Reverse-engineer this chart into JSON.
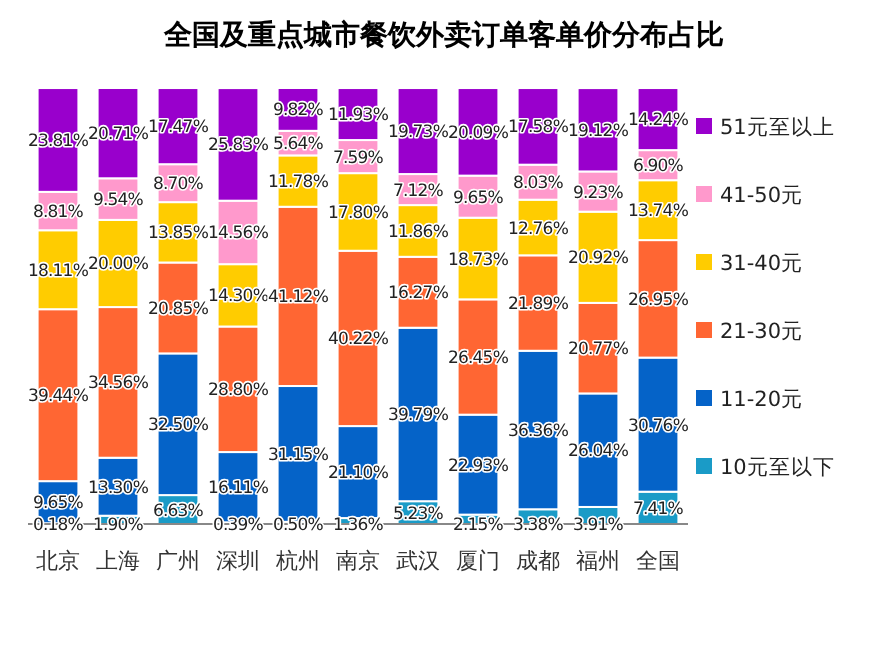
{
  "chart_data": {
    "type": "bar",
    "stacked": true,
    "legend": "right",
    "title": "全国及重点城市餐饮外卖订单客单价分布占比",
    "categories": [
      "北京",
      "上海",
      "广州",
      "深圳",
      "杭州",
      "南京",
      "武汉",
      "厦门",
      "成都",
      "福州",
      "全国"
    ],
    "series": [
      {
        "name": "10元至以下",
        "color": "#1a9bc7",
        "values": [
          0.18,
          1.9,
          6.63,
          0.39,
          0.5,
          1.36,
          5.23,
          2.15,
          3.38,
          3.91,
          7.41
        ],
        "value_labels": [
          "0.18%",
          "1.90%",
          "6.63%",
          "0.39%",
          "0.50%",
          "1.36%",
          "5.23%",
          "2.15%",
          "3.38%",
          "3.91%",
          "7.41%"
        ]
      },
      {
        "name": "11-20元",
        "color": "#0563c8",
        "values": [
          9.65,
          13.3,
          32.5,
          16.11,
          31.15,
          21.1,
          39.79,
          22.93,
          36.36,
          26.04,
          30.76
        ],
        "value_labels": [
          "9.65%",
          "13.30%",
          "32.50%",
          "16.11%",
          "31.15%",
          "21.10%",
          "39.79%",
          "22.93%",
          "36.36%",
          "26.04%",
          "30.76%"
        ]
      },
      {
        "name": "21-30元",
        "color": "#ff6633",
        "values": [
          39.44,
          34.56,
          20.85,
          28.8,
          41.12,
          40.22,
          16.27,
          26.45,
          21.89,
          20.77,
          26.95
        ],
        "value_labels": [
          "39.44%",
          "34.56%",
          "20.85%",
          "28.80%",
          "41.12%",
          "40.22%",
          "16.27%",
          "26.45%",
          "21.89%",
          "20.77%",
          "26.95%"
        ]
      },
      {
        "name": "31-40元",
        "color": "#ffcc00",
        "values": [
          18.11,
          20.0,
          13.85,
          14.3,
          11.78,
          17.8,
          11.86,
          18.73,
          12.76,
          20.92,
          13.74
        ],
        "value_labels": [
          "18.11%",
          "20.00%",
          "13.85%",
          "14.30%",
          "11.78%",
          "17.80%",
          "11.86%",
          "18.73%",
          "12.76%",
          "20.92%",
          "13.74%"
        ]
      },
      {
        "name": "41-50元",
        "color": "#ff99cc",
        "values": [
          8.81,
          9.54,
          8.7,
          14.56,
          5.64,
          7.59,
          7.12,
          9.65,
          8.03,
          9.23,
          6.9
        ],
        "value_labels": [
          "8.81%",
          "9.54%",
          "8.70%",
          "14.56%",
          "5.64%",
          "7.59%",
          "7.12%",
          "9.65%",
          "8.03%",
          "9.23%",
          "6.90%"
        ]
      },
      {
        "name": "51元至以上",
        "color": "#9900cc",
        "values": [
          23.81,
          20.71,
          17.47,
          25.83,
          9.82,
          11.93,
          19.73,
          20.09,
          17.58,
          19.12,
          14.24
        ],
        "value_labels": [
          "23.81%",
          "20.71%",
          "17.47%",
          "25.83%",
          "9.82%",
          "11.93%",
          "19.73%",
          "20.09%",
          "17.58%",
          "19.12%",
          "14.24%"
        ]
      }
    ]
  }
}
